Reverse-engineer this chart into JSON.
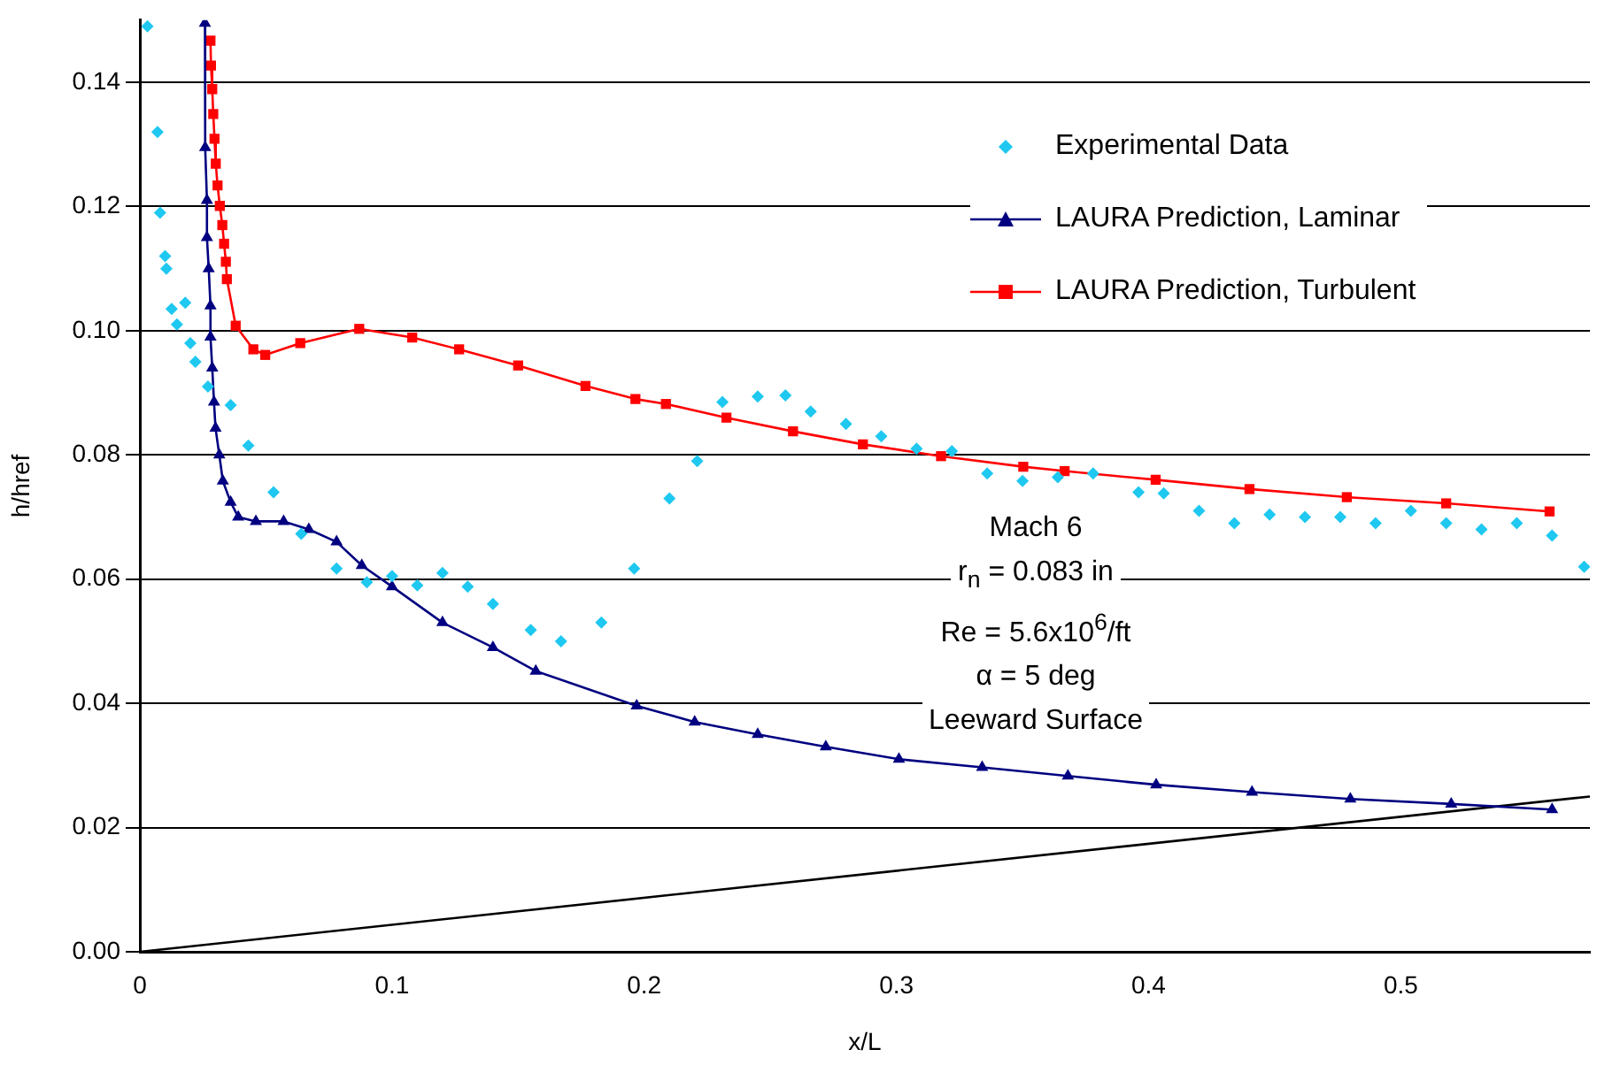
{
  "chart_data": {
    "type": "scatter",
    "xlabel": "x/L",
    "ylabel": "h/href",
    "xlim": [
      0,
      0.575
    ],
    "ylim": [
      0,
      0.15
    ],
    "xticks": [
      0,
      0.1,
      0.2,
      0.3,
      0.4,
      0.5
    ],
    "yticks": [
      {
        "value": 0,
        "label": "0.00"
      },
      {
        "value": 0.02,
        "label": "0.02"
      },
      {
        "value": 0.04,
        "label": "0.04"
      },
      {
        "value": 0.06,
        "label": "0.06"
      },
      {
        "value": 0.08,
        "label": "0.08"
      },
      {
        "value": 0.1,
        "label": "0.10"
      },
      {
        "value": 0.12,
        "label": "0.12"
      },
      {
        "value": 0.14,
        "label": "0.14"
      }
    ],
    "grid": "y",
    "legend": "top right",
    "annotations": [
      "Mach 6",
      "r$_{n}$ = 0.083 in",
      "Re = 5.6x10$^{6}$/ft",
      "α = 5 deg",
      "Leeward Surface"
    ],
    "series": [
      {
        "name": "Experimental Data",
        "type": "scatter",
        "marker": "diamond",
        "color": "#1ec8f0",
        "x": [
          0.003,
          0.007,
          0.008,
          0.01,
          0.0105,
          0.0126,
          0.0147,
          0.018,
          0.02,
          0.022,
          0.027,
          0.036,
          0.043,
          0.053,
          0.064,
          0.078,
          0.09,
          0.1,
          0.11,
          0.12,
          0.13,
          0.14,
          0.155,
          0.167,
          0.183,
          0.196,
          0.21,
          0.221,
          0.231,
          0.245,
          0.256,
          0.266,
          0.28,
          0.294,
          0.308,
          0.322,
          0.336,
          0.35,
          0.364,
          0.378,
          0.396,
          0.406,
          0.42,
          0.434,
          0.448,
          0.462,
          0.476,
          0.49,
          0.504,
          0.518,
          0.532,
          0.546,
          0.56,
          0.5727
        ],
        "values": [
          0.149,
          0.132,
          0.119,
          0.112,
          0.11,
          0.1035,
          0.101,
          0.1045,
          0.098,
          0.095,
          0.091,
          0.088,
          0.0815,
          0.074,
          0.0673,
          0.0617,
          0.0595,
          0.0605,
          0.059,
          0.061,
          0.0588,
          0.056,
          0.0518,
          0.05,
          0.053,
          0.0617,
          0.073,
          0.079,
          0.0885,
          0.0894,
          0.0896,
          0.087,
          0.085,
          0.083,
          0.081,
          0.0806,
          0.077,
          0.0758,
          0.0764,
          0.077,
          0.074,
          0.0738,
          0.071,
          0.069,
          0.0704,
          0.07,
          0.07,
          0.069,
          0.071,
          0.069,
          0.068,
          0.069,
          0.067,
          0.062
        ]
      },
      {
        "name": "LAURA Prediction, Laminar",
        "type": "line",
        "marker": "triangle",
        "color": "#000080",
        "x": [
          0.0258,
          0.0259,
          0.0266,
          0.0266,
          0.0273,
          0.028,
          0.028,
          0.0287,
          0.0294,
          0.03,
          0.0315,
          0.0329,
          0.036,
          0.039,
          0.046,
          0.057,
          0.067,
          0.078,
          0.088,
          0.1,
          0.12,
          0.14,
          0.157,
          0.197,
          0.22,
          0.245,
          0.272,
          0.301,
          0.334,
          0.368,
          0.403,
          0.441,
          0.48,
          0.52,
          0.56
        ],
        "values": [
          0.1495,
          0.1295,
          0.121,
          0.115,
          0.11,
          0.104,
          0.099,
          0.094,
          0.0885,
          0.0843,
          0.08,
          0.0758,
          0.0724,
          0.07,
          0.0693,
          0.0693,
          0.068,
          0.066,
          0.0622,
          0.0588,
          0.053,
          0.049,
          0.0452,
          0.0396,
          0.037,
          0.035,
          0.033,
          0.031,
          0.0297,
          0.0283,
          0.0269,
          0.0257,
          0.0246,
          0.0238,
          0.0229
        ]
      },
      {
        "name": "LAURA Prediction, Turbulent",
        "type": "line",
        "marker": "square",
        "color": "#ff0000",
        "x": [
          0.028,
          0.0282,
          0.0287,
          0.0291,
          0.0296,
          0.0301,
          0.0308,
          0.0317,
          0.0327,
          0.0334,
          0.0341,
          0.0345,
          0.038,
          0.045,
          0.0497,
          0.0636,
          0.087,
          0.108,
          0.1266,
          0.15,
          0.1767,
          0.1965,
          0.2086,
          0.2326,
          0.259,
          0.2867,
          0.3177,
          0.3503,
          0.3667,
          0.4028,
          0.44,
          0.4786,
          0.518,
          0.559
        ],
        "values": [
          0.1467,
          0.1427,
          0.1389,
          0.1349,
          0.1309,
          0.1269,
          0.1234,
          0.1201,
          0.117,
          0.114,
          0.1111,
          0.1083,
          0.1008,
          0.097,
          0.0961,
          0.098,
          0.1003,
          0.0989,
          0.097,
          0.0944,
          0.0911,
          0.089,
          0.0882,
          0.086,
          0.0838,
          0.0817,
          0.0798,
          0.0781,
          0.0774,
          0.076,
          0.0745,
          0.0732,
          0.0722,
          0.0709
        ]
      },
      {
        "type": "line",
        "marker": "none",
        "color": "#000000",
        "x": [
          0,
          0.575
        ],
        "values": [
          0,
          0.025
        ]
      }
    ]
  }
}
